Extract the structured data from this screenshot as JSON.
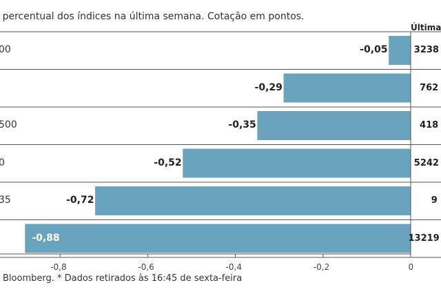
{
  "subtitle": "ão percentual dos índices na última semana. Cotação em pontos.",
  "last_header": "Última c",
  "source": "Bloomberg.  * Dados retirados às 16:45 de sexta-feira",
  "colors": {
    "bar": "#6aa3bd",
    "rule": "#555555",
    "label_outside": "#222222",
    "label_inside": "#ffffff"
  },
  "chart_data": {
    "type": "bar",
    "orientation": "horizontal",
    "categories": [
      "00",
      "",
      "500",
      "0",
      "35",
      ""
    ],
    "values": [
      -0.05,
      -0.29,
      -0.35,
      -0.52,
      -0.72,
      -0.88
    ],
    "value_labels": [
      "-0,05",
      "-0,29",
      "-0,35",
      "-0,52",
      "-0,72",
      "-0,88"
    ],
    "last_values": [
      "3238",
      "762",
      "418",
      "5242",
      "9",
      "13219"
    ],
    "xlim": [
      -0.95,
      0
    ],
    "xticks": [
      -0.8,
      -0.6,
      -0.4,
      -0.2,
      0
    ],
    "xtick_labels": [
      "-0,8",
      "-0,6",
      "-0,4",
      "-0,2",
      "0"
    ],
    "grid": false
  }
}
